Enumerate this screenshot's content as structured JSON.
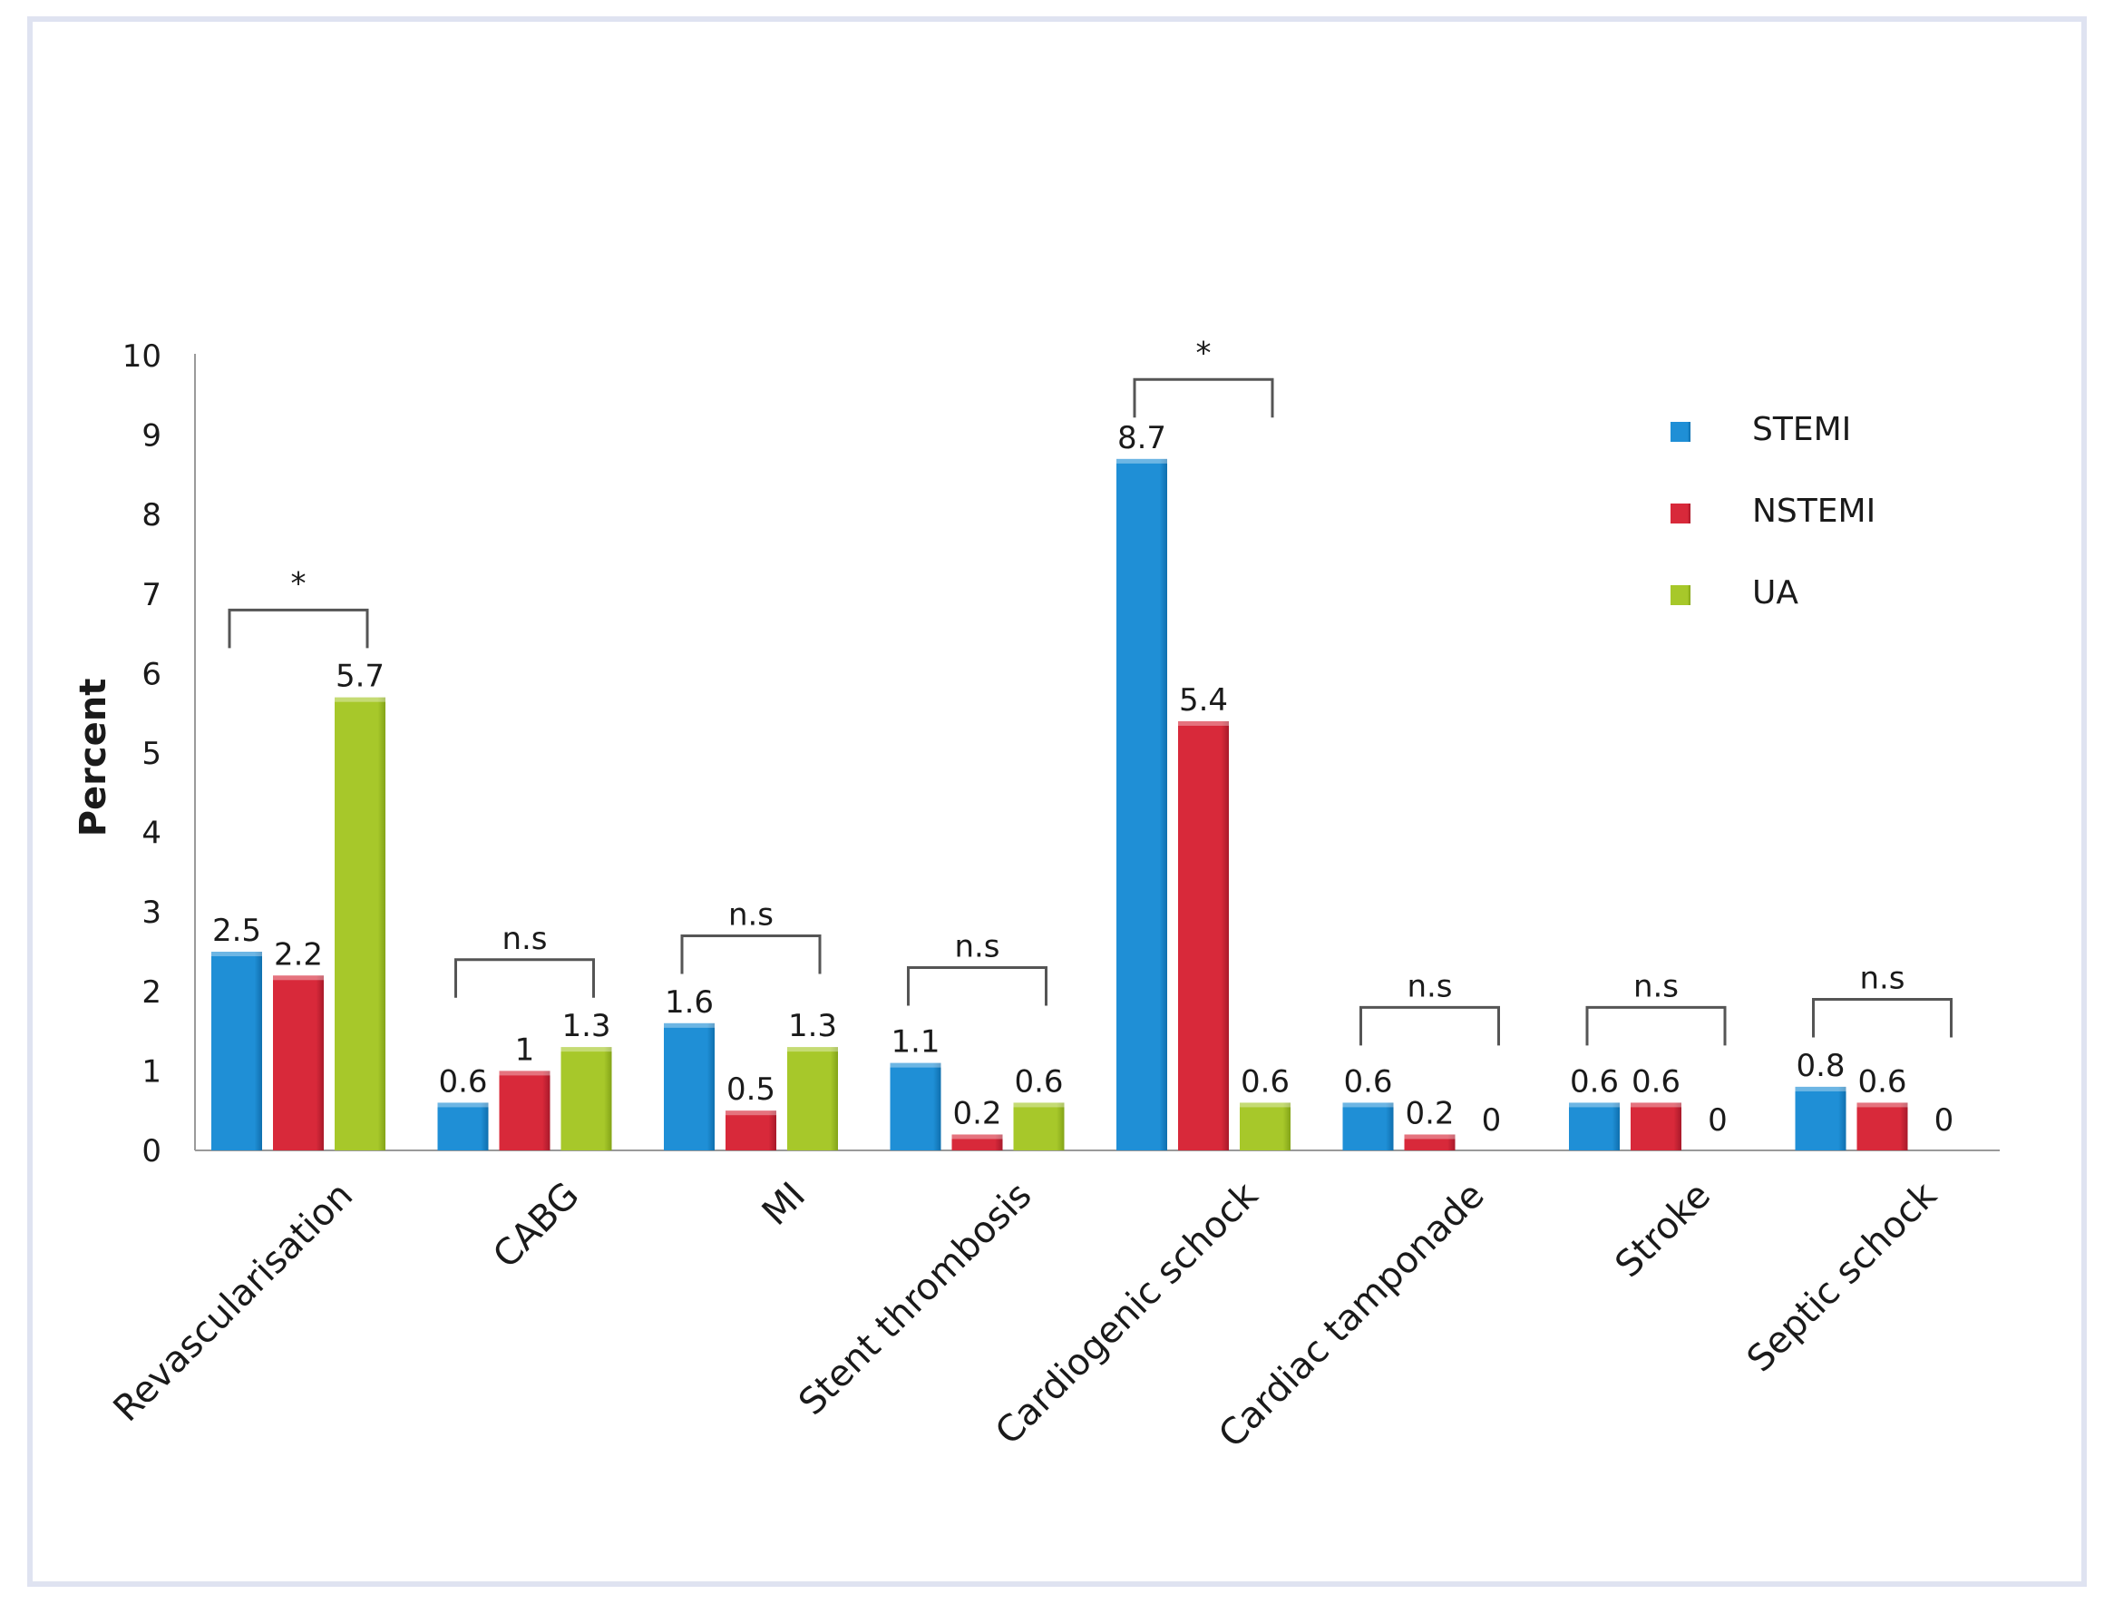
{
  "chart_data": {
    "type": "bar",
    "title": "",
    "xlabel": "",
    "ylabel": "Percent",
    "ylim": [
      0,
      10
    ],
    "yticks": [
      "0",
      "1",
      "2",
      "3",
      "4",
      "5",
      "6",
      "7",
      "8",
      "9",
      "10"
    ],
    "categories": [
      "Revascularisation",
      "CABG",
      "MI",
      "Stent thrombosis",
      "Cardiogenic schock",
      "Cardiac tamponade",
      "Stroke",
      "Septic schock"
    ],
    "series": [
      {
        "name": "STEMI",
        "color": "#1f8fd6",
        "values": [
          2.5,
          0.6,
          1.6,
          1.1,
          8.7,
          0.6,
          0.6,
          0.8
        ],
        "labels": [
          "2.5",
          "0.6",
          "1.6",
          "1.1",
          "8.7",
          "0.6",
          "0.6",
          "0.8"
        ]
      },
      {
        "name": "NSTEMI",
        "color": "#d8293a",
        "values": [
          2.2,
          1.0,
          0.5,
          0.2,
          5.4,
          0.2,
          0.6,
          0.6
        ],
        "labels": [
          "2.2",
          "1",
          "0.5",
          "0.2",
          "5.4",
          "0.2",
          "0.6",
          "0.6"
        ]
      },
      {
        "name": "UA",
        "color": "#a7c82a",
        "values": [
          5.7,
          1.3,
          1.3,
          0.6,
          0.6,
          0.0,
          0.0,
          0.0
        ],
        "labels": [
          "5.7",
          "1.3",
          "1.3",
          "0.6",
          "0.6",
          "0",
          "0",
          "0"
        ]
      }
    ],
    "legend": {
      "position": "top-right",
      "entries": [
        "STEMI",
        "NSTEMI",
        "UA"
      ]
    },
    "significance": [
      {
        "category": "Revascularisation",
        "label": "*",
        "level": 6.8
      },
      {
        "category": "CABG",
        "label": "n.s",
        "level": 2.4
      },
      {
        "category": "MI",
        "label": "n.s",
        "level": 2.7
      },
      {
        "category": "Stent thrombosis",
        "label": "n.s",
        "level": 2.3
      },
      {
        "category": "Cardiogenic schock",
        "label": "*",
        "level": 9.7
      },
      {
        "category": "Cardiac tamponade",
        "label": "n.s",
        "level": 1.8
      },
      {
        "category": "Stroke",
        "label": "n.s",
        "level": 1.8
      },
      {
        "category": "Septic schock",
        "label": "n.s",
        "level": 1.9
      }
    ]
  }
}
